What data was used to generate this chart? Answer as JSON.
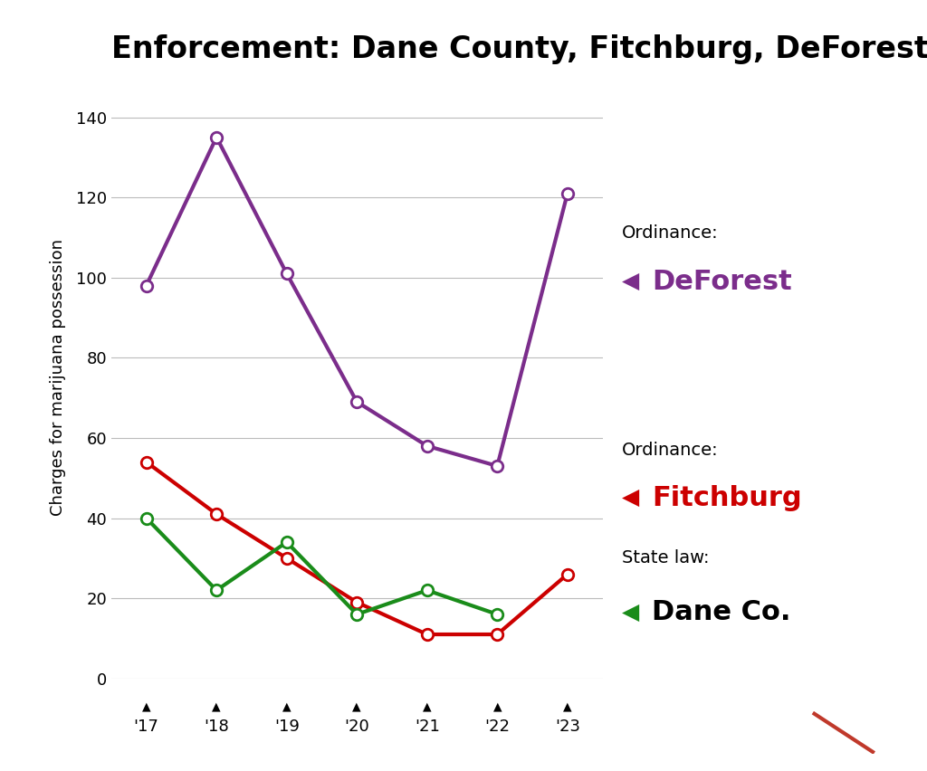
{
  "title": "Enforcement: Dane County, Fitchburg, DeForest",
  "ylabel": "Charges for marijuana possession",
  "years": [
    "'17",
    "'18",
    "'19",
    "'20",
    "'21",
    "'22",
    "'23"
  ],
  "deforest": [
    98,
    135,
    101,
    69,
    58,
    53,
    121
  ],
  "fitchburg": [
    54,
    41,
    30,
    19,
    11,
    11,
    26
  ],
  "dane_co": [
    40,
    22,
    34,
    16,
    22,
    16,
    null
  ],
  "deforest_color": "#7B2D8B",
  "fitchburg_color": "#CC0000",
  "dane_co_color": "#1A8C1A",
  "background_color": "#FFFFFF",
  "ylim": [
    0,
    150
  ],
  "yticks": [
    0,
    20,
    40,
    60,
    80,
    100,
    120,
    140
  ],
  "title_fontsize": 24,
  "axis_label_fontsize": 13,
  "tick_fontsize": 13,
  "legend_small_fontsize": 14,
  "legend_large_fontsize": 22
}
